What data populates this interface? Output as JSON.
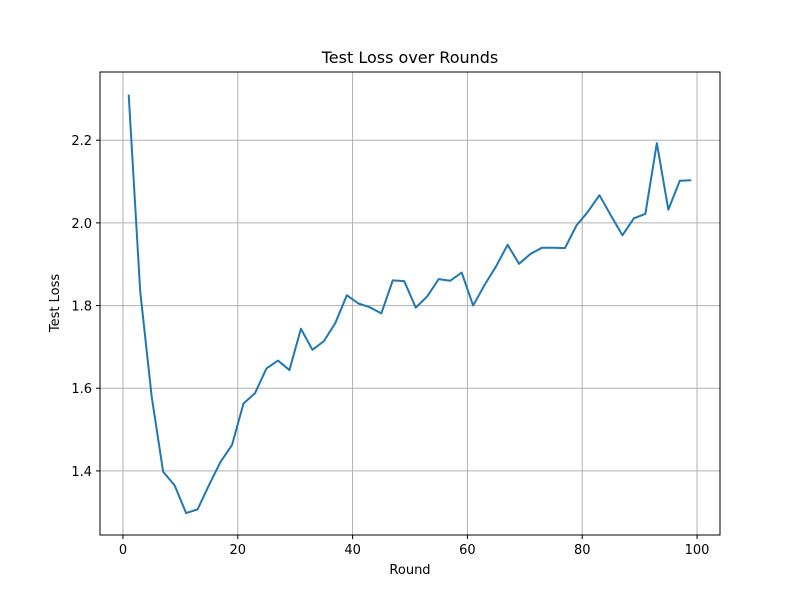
{
  "chart_data": {
    "type": "line",
    "title": "Test Loss over Rounds",
    "xlabel": "Round",
    "ylabel": "Test Loss",
    "xlim": [
      -4,
      104
    ],
    "ylim": [
      1.245,
      2.365
    ],
    "xticks": [
      0,
      20,
      40,
      60,
      80,
      100
    ],
    "yticks": [
      1.4,
      1.6,
      1.8,
      2.0,
      2.2
    ],
    "xtick_labels": [
      "0",
      "20",
      "40",
      "60",
      "80",
      "100"
    ],
    "ytick_labels": [
      "1.4",
      "1.6",
      "1.8",
      "2.0",
      "2.2"
    ],
    "grid": true,
    "legend": "none",
    "line_color": "#1f77b4",
    "series": [
      {
        "x": [
          1,
          3,
          5,
          7,
          9,
          11,
          13,
          15,
          17,
          19,
          21,
          23,
          25,
          27,
          29,
          31,
          33,
          35,
          37,
          39,
          41,
          43,
          45,
          47,
          49,
          51,
          53,
          55,
          57,
          59,
          61,
          63,
          65,
          67,
          69,
          71,
          73,
          75,
          77,
          79,
          81,
          83,
          85,
          87,
          89,
          91,
          93,
          95,
          97,
          99
        ],
        "y": [
          2.31,
          1.835,
          1.58,
          1.398,
          1.365,
          1.298,
          1.307,
          1.366,
          1.422,
          1.463,
          1.563,
          1.588,
          1.648,
          1.667,
          1.644,
          1.744,
          1.693,
          1.714,
          1.758,
          1.825,
          1.805,
          1.796,
          1.781,
          1.861,
          1.859,
          1.795,
          1.822,
          1.864,
          1.86,
          1.88,
          1.8,
          1.85,
          1.895,
          1.947,
          1.901,
          1.925,
          1.94,
          1.94,
          1.939,
          1.994,
          2.027,
          2.067,
          2.018,
          1.97,
          2.011,
          2.022,
          2.193,
          2.032,
          2.102,
          2.103
        ]
      }
    ]
  }
}
